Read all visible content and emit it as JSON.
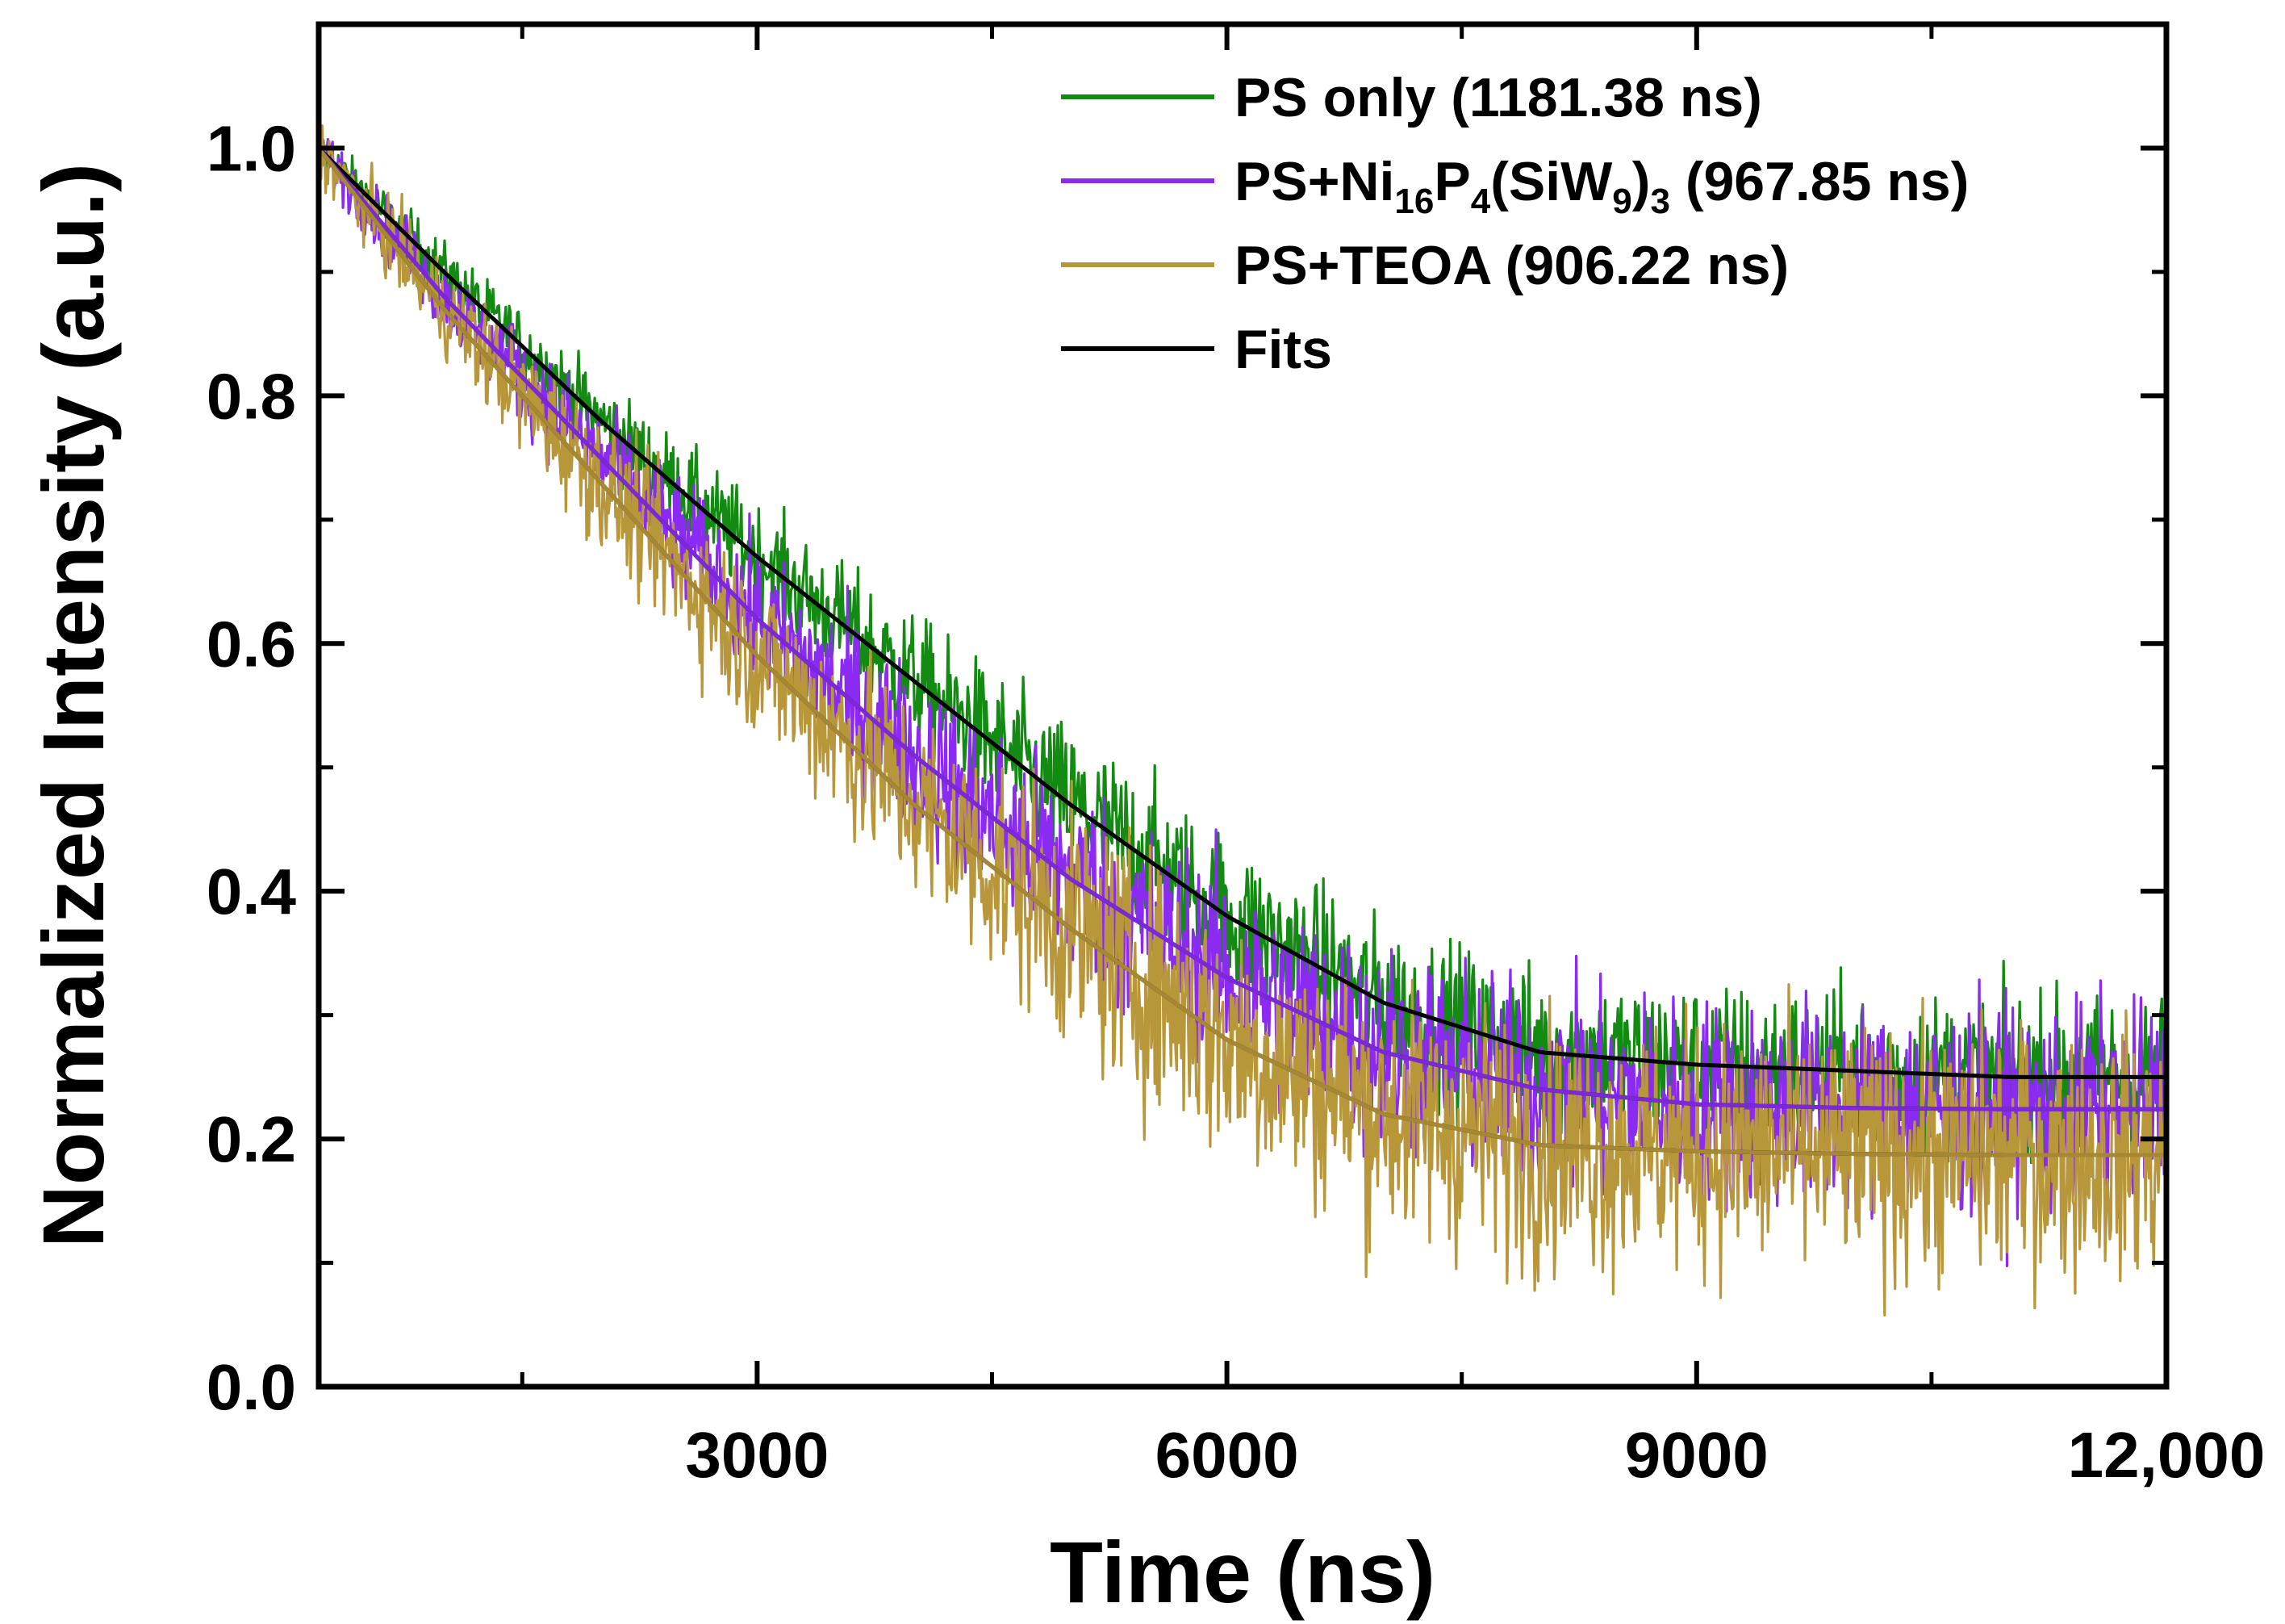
{
  "chart_data": {
    "type": "line",
    "title": "",
    "xlabel": "Time (ns)",
    "ylabel": "Normalized Intensity (a.u.)",
    "xlim": [
      200,
      12000
    ],
    "ylim": [
      0.0,
      1.1
    ],
    "x_ticks": [
      3000,
      6000,
      9000,
      12000
    ],
    "x_tick_labels": [
      "3000",
      "6000",
      "9000",
      "12,000"
    ],
    "y_ticks": [
      0.0,
      0.2,
      0.4,
      0.6,
      0.8,
      1.0
    ],
    "y_tick_labels": [
      "0.0",
      "0.2",
      "0.4",
      "0.6",
      "0.8",
      "1.0"
    ],
    "grid": false,
    "legend_position": "top-right",
    "series": [
      {
        "name": "PS only (1181.38 ns)",
        "legend_parts": [
          {
            "t": "PS only (1181.38 ns)"
          }
        ],
        "color": "#138A12",
        "kind": "data",
        "noise": 0.032,
        "x": [
          200,
          1000,
          2000,
          3000,
          4000,
          5000,
          6000,
          7000,
          8000,
          9000,
          10000,
          11000,
          12000
        ],
        "y": [
          1.0,
          0.9,
          0.78,
          0.67,
          0.57,
          0.47,
          0.38,
          0.31,
          0.27,
          0.26,
          0.255,
          0.25,
          0.25
        ]
      },
      {
        "name": "PS+Ni16P4(SiW9)3 (967.85 ns)",
        "legend_parts": [
          {
            "t": "PS+Ni"
          },
          {
            "t": "16",
            "sub": true
          },
          {
            "t": "P"
          },
          {
            "t": "4",
            "sub": true
          },
          {
            "t": "(SiW"
          },
          {
            "t": "9",
            "sub": true
          },
          {
            "t": ")"
          },
          {
            "t": "3",
            "sub": true
          },
          {
            "t": " (967.85 ns)"
          }
        ],
        "color": "#8B2BF2",
        "kind": "data",
        "noise": 0.042,
        "x": [
          200,
          1000,
          2000,
          3000,
          4000,
          5000,
          6000,
          7000,
          8000,
          9000,
          10000,
          11000,
          12000
        ],
        "y": [
          1.0,
          0.88,
          0.75,
          0.62,
          0.51,
          0.41,
          0.33,
          0.27,
          0.24,
          0.228,
          0.225,
          0.224,
          0.224
        ]
      },
      {
        "name": "PS+TEOA (906.22 ns)",
        "legend_parts": [
          {
            "t": "PS+TEOA (906.22 ns)"
          }
        ],
        "color": "#B8963A",
        "kind": "data",
        "noise": 0.05,
        "x": [
          200,
          1000,
          2000,
          3000,
          4000,
          5000,
          6000,
          7000,
          8000,
          9000,
          10000,
          11000,
          12000
        ],
        "y": [
          1.0,
          0.87,
          0.73,
          0.59,
          0.47,
          0.37,
          0.28,
          0.22,
          0.195,
          0.19,
          0.188,
          0.187,
          0.187
        ]
      },
      {
        "name": "Fits",
        "legend_parts": [
          {
            "t": "Fits"
          }
        ],
        "color": "#000000",
        "kind": "fit",
        "fit_curves": [
          {
            "x": [
              200,
              1000,
              2000,
              3000,
              4000,
              5000,
              6000,
              7000,
              8000,
              9000,
              10000,
              11000,
              12000
            ],
            "y": [
              1.0,
              0.9,
              0.78,
              0.67,
              0.57,
              0.47,
              0.38,
              0.31,
              0.27,
              0.26,
              0.255,
              0.25,
              0.25
            ]
          },
          {
            "x": [
              200,
              1000,
              2000,
              3000,
              4000,
              5000,
              6000,
              7000,
              8000,
              9000,
              10000,
              11000,
              12000
            ],
            "y": [
              1.0,
              0.88,
              0.75,
              0.62,
              0.51,
              0.41,
              0.33,
              0.27,
              0.24,
              0.228,
              0.225,
              0.224,
              0.224
            ]
          },
          {
            "x": [
              200,
              1000,
              2000,
              3000,
              4000,
              5000,
              6000,
              7000,
              8000,
              9000,
              10000,
              11000,
              12000
            ],
            "y": [
              1.0,
              0.87,
              0.73,
              0.59,
              0.47,
              0.37,
              0.28,
              0.22,
              0.195,
              0.19,
              0.188,
              0.187,
              0.187
            ]
          }
        ]
      }
    ]
  }
}
